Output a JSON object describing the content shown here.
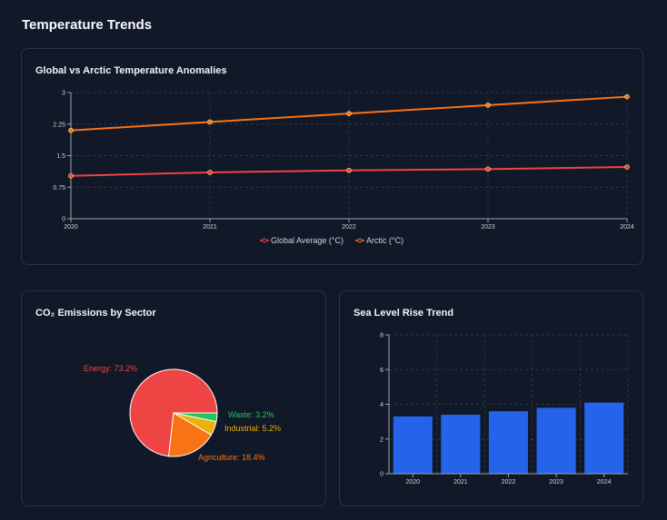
{
  "page": {
    "title": "Temperature Trends"
  },
  "temperature_card": {
    "title": "Global vs Arctic Temperature Anomalies"
  },
  "emissions_card": {
    "title": "CO₂ Emissions by Sector"
  },
  "sealevel_card": {
    "title": "Sea Level Rise Trend"
  },
  "colors": {
    "background": "#111827",
    "global": "#ef4444",
    "arctic": "#f97316",
    "energy": "#ef4444",
    "agriculture": "#f97316",
    "industrial": "#eab308",
    "waste": "#22c55e",
    "sea_level": "#2563eb",
    "grid": "#374151"
  },
  "chart_data": [
    {
      "type": "line",
      "title": "Global vs Arctic Temperature Anomalies",
      "x": [
        "2020",
        "2021",
        "2022",
        "2023",
        "2024"
      ],
      "series": [
        {
          "name": "Global Average (°C)",
          "values": [
            1.02,
            1.1,
            1.15,
            1.18,
            1.23
          ]
        },
        {
          "name": "Arctic (°C)",
          "values": [
            2.1,
            2.3,
            2.5,
            2.7,
            2.9
          ]
        }
      ],
      "yticks": [
        "0",
        "0.75",
        "1.5",
        "2.25",
        "3"
      ],
      "ylim": [
        0,
        3
      ],
      "grid": true,
      "legend": "bottom"
    },
    {
      "type": "pie",
      "title": "CO₂ Emissions by Sector",
      "slices": [
        {
          "label": "Energy: 73.2%",
          "value": 73.2
        },
        {
          "label": "Agriculture: 18.4%",
          "value": 18.4
        },
        {
          "label": "Industrial: 5.2%",
          "value": 5.2
        },
        {
          "label": "Waste: 3.2%",
          "value": 3.2
        }
      ]
    },
    {
      "type": "bar",
      "title": "Sea Level Rise Trend",
      "categories": [
        "2020",
        "2021",
        "2022",
        "2023",
        "2024"
      ],
      "values": [
        3.3,
        3.4,
        3.6,
        3.8,
        4.1
      ],
      "yticks": [
        "0",
        "2",
        "4",
        "6",
        "8"
      ],
      "ylim": [
        0,
        8
      ],
      "grid": true
    }
  ]
}
